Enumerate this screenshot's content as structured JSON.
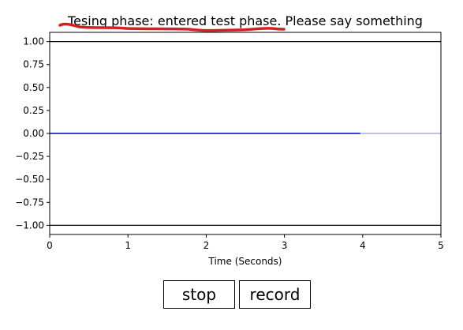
{
  "plot": {
    "title": "Tesing phase: entered test phase. Please say something",
    "xlabel": "Time (Seconds)",
    "xticks": [
      "0",
      "1",
      "2",
      "3",
      "4",
      "5"
    ],
    "yticks": [
      "1.00",
      "0.75",
      "0.50",
      "0.25",
      "0.00",
      "−0.25",
      "−0.50",
      "−0.75",
      "−1.00"
    ]
  },
  "chart_data": {
    "type": "line",
    "xlabel": "Time (Seconds)",
    "ylabel": "",
    "xlim": [
      0,
      5
    ],
    "ylim": [
      -1.1,
      1.1
    ],
    "threshold_lines": [
      1.0,
      -1.0
    ],
    "series": [
      {
        "x": [
          0,
          3.97
        ],
        "y": [
          0,
          0
        ],
        "color": "#0000cc"
      }
    ],
    "reference_line": {
      "y": 0,
      "x": [
        3.97,
        5
      ],
      "color": "#8080c0"
    },
    "grid": false,
    "annotation_color": "#d42020"
  },
  "buttons": {
    "stop_label": "stop",
    "record_label": "record"
  }
}
